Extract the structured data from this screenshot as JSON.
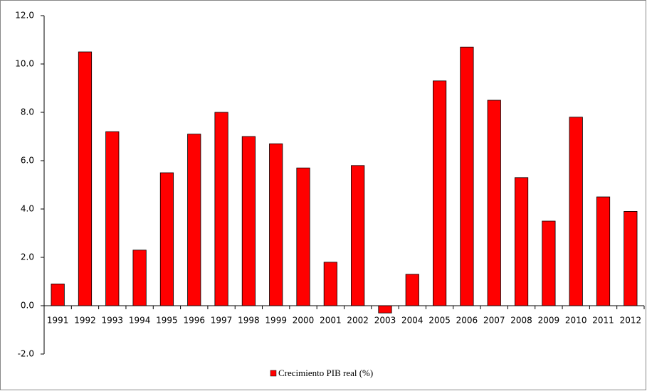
{
  "chart_data": {
    "type": "bar",
    "categories": [
      "1991",
      "1992",
      "1993",
      "1994",
      "1995",
      "1996",
      "1997",
      "1998",
      "1999",
      "2000",
      "2001",
      "2002",
      "2003",
      "2004",
      "2005",
      "2006",
      "2007",
      "2008",
      "2009",
      "2010",
      "2011",
      "2012"
    ],
    "series": [
      {
        "name": "Crecimiento PIB real (%)",
        "color": "#ff0000",
        "values": [
          0.9,
          10.5,
          7.2,
          2.3,
          5.5,
          7.1,
          8.0,
          7.0,
          6.7,
          5.7,
          1.8,
          5.8,
          -0.3,
          1.3,
          9.3,
          10.7,
          8.5,
          5.3,
          3.5,
          7.8,
          4.5,
          3.9
        ]
      }
    ],
    "ylim": [
      -2,
      12
    ],
    "yticks": [
      {
        "value": -2,
        "label": "-2.0"
      },
      {
        "value": 0,
        "label": "0.0"
      },
      {
        "value": 2,
        "label": "2.0"
      },
      {
        "value": 4,
        "label": "4.0"
      },
      {
        "value": 6,
        "label": "6.0"
      },
      {
        "value": 8,
        "label": "8.0"
      },
      {
        "value": 10,
        "label": "10.0"
      },
      {
        "value": 12,
        "label": "12.0"
      }
    ],
    "legend": "bottom"
  }
}
